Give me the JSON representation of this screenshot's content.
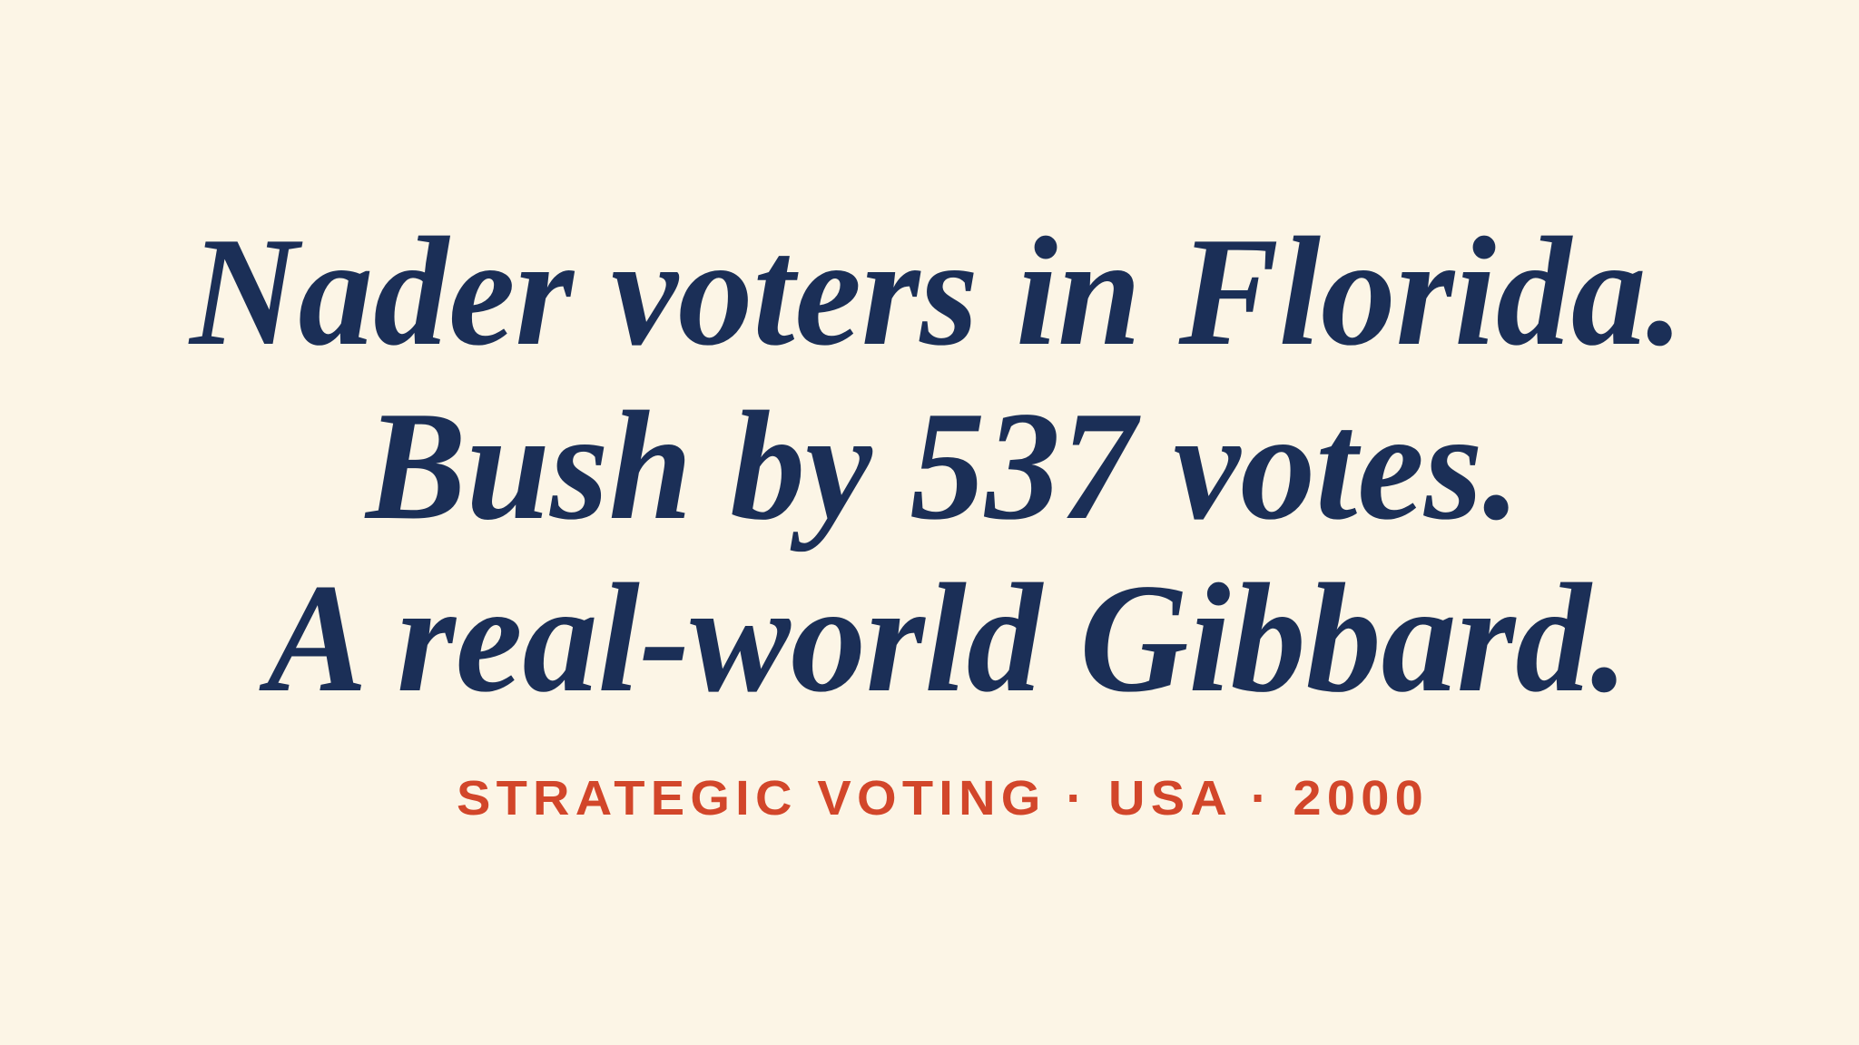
{
  "headline": {
    "lines": [
      "Nader voters in Florida.",
      "Bush by 537 votes.",
      "A real-world Gibbard."
    ]
  },
  "tagline": "STRATEGIC VOTING · USA · 2000"
}
